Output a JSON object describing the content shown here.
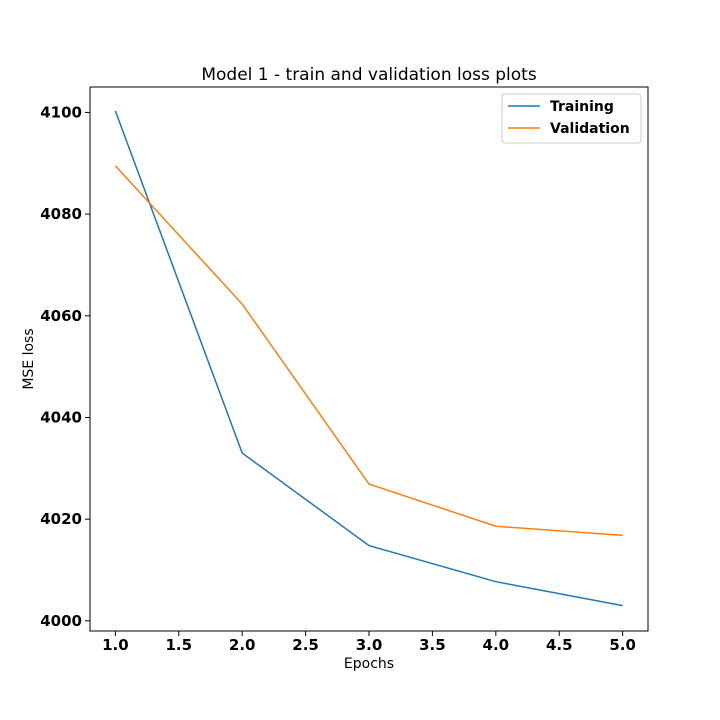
{
  "chart_data": {
    "type": "line",
    "title": "Model 1 - train and validation loss plots",
    "xlabel": "Epochs",
    "ylabel": "MSE loss",
    "xlim": [
      0.8,
      5.2
    ],
    "ylim": [
      3998,
      4105
    ],
    "xticks": [
      1.0,
      1.5,
      2.0,
      2.5,
      3.0,
      3.5,
      4.0,
      4.5,
      5.0
    ],
    "xtick_labels": [
      "1.0",
      "1.5",
      "2.0",
      "2.5",
      "3.0",
      "3.5",
      "4.0",
      "4.5",
      "5.0"
    ],
    "yticks": [
      4000,
      4020,
      4040,
      4060,
      4080,
      4100
    ],
    "ytick_labels": [
      "4000",
      "4020",
      "4040",
      "4060",
      "4080",
      "4100"
    ],
    "x": [
      1,
      2,
      3,
      4,
      5
    ],
    "series": [
      {
        "name": "Training",
        "color": "#1f77b4",
        "values": [
          4100.3,
          4033.0,
          4014.8,
          4007.7,
          4003.0
        ]
      },
      {
        "name": "Validation",
        "color": "#ff7f0e",
        "values": [
          4089.5,
          4062.3,
          4026.9,
          4018.6,
          4016.8
        ]
      }
    ],
    "grid": false,
    "legend_position": "top-right"
  }
}
